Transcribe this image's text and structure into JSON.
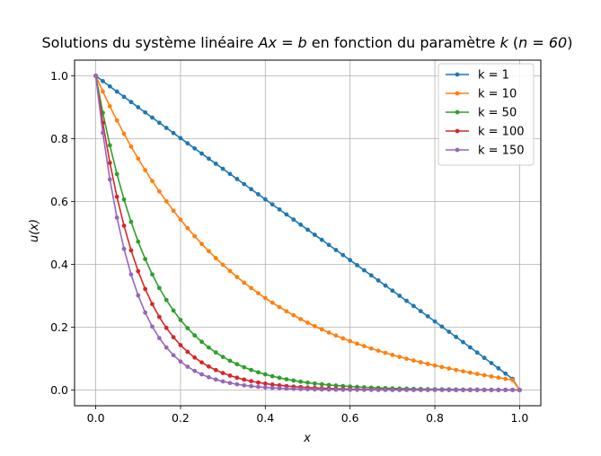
{
  "chart_data": {
    "type": "line",
    "title": "Solutions du système linéaire Ax = b en fonction du paramètre k (n = 60)",
    "title_parts": {
      "prefix": "Solutions du système linéaire ",
      "equation": "Ax = b",
      "middle": " en fonction du paramètre ",
      "param": "k",
      "suffix_open": " (",
      "n_expr": "n = 60",
      "suffix_close": ")"
    },
    "xlabel": "x",
    "ylabel": "u(x)",
    "xlim": [
      -0.05,
      1.05
    ],
    "ylim": [
      -0.05,
      1.05
    ],
    "xticks": [
      0.0,
      0.2,
      0.4,
      0.6,
      0.8,
      1.0
    ],
    "yticks": [
      0.0,
      0.2,
      0.4,
      0.6,
      0.8,
      1.0
    ],
    "xtick_labels": [
      "0.0",
      "0.2",
      "0.4",
      "0.6",
      "0.8",
      "1.0"
    ],
    "ytick_labels": [
      "0.0",
      "0.2",
      "0.4",
      "0.6",
      "0.8",
      "1.0"
    ],
    "grid": true,
    "legend_position": "top-right",
    "n_points": 61,
    "x_start": 0.0,
    "x_end": 1.0,
    "series": [
      {
        "name": "k = 1",
        "color": "#1f77b4",
        "values": [
          1.0,
          0.9832,
          0.9665,
          0.9498,
          0.9332,
          0.9166,
          0.9001,
          0.8836,
          0.8671,
          0.8507,
          0.8343,
          0.8179,
          0.8016,
          0.7852,
          0.769,
          0.7527,
          0.7364,
          0.7202,
          0.704,
          0.6878,
          0.6716,
          0.6554,
          0.6393,
          0.6231,
          0.607,
          0.5908,
          0.5747,
          0.5586,
          0.5425,
          0.5263,
          0.5102,
          0.4941,
          0.478,
          0.4619,
          0.4457,
          0.4296,
          0.4134,
          0.3973,
          0.3811,
          0.3649,
          0.3487,
          0.3325,
          0.3163,
          0.3,
          0.2837,
          0.2674,
          0.2511,
          0.2347,
          0.2183,
          0.2019,
          0.1854,
          0.1689,
          0.1524,
          0.1358,
          0.1192,
          0.1025,
          0.0858,
          0.0691,
          0.0523,
          0.0354,
          0.0
        ]
      },
      {
        "name": "k = 10",
        "color": "#ff7f0e",
        "values": [
          1.0,
          0.9503,
          0.9031,
          0.8582,
          0.8156,
          0.775,
          0.7365,
          0.6999,
          0.6651,
          0.632,
          0.6005,
          0.5706,
          0.5422,
          0.5152,
          0.4895,
          0.4651,
          0.4419,
          0.4198,
          0.3988,
          0.3789,
          0.3599,
          0.3418,
          0.3247,
          0.3083,
          0.2928,
          0.2781,
          0.264,
          0.2507,
          0.2379,
          0.2258,
          0.2143,
          0.2033,
          0.1929,
          0.1829,
          0.1734,
          0.1644,
          0.1557,
          0.1475,
          0.1397,
          0.1322,
          0.1251,
          0.1183,
          0.1117,
          0.1055,
          0.0996,
          0.0938,
          0.0884,
          0.0831,
          0.0781,
          0.0732,
          0.0685,
          0.064,
          0.0596,
          0.0553,
          0.0512,
          0.0472,
          0.0432,
          0.0394,
          0.0356,
          0.0318,
          0.0
        ]
      },
      {
        "name": "k = 50",
        "color": "#2ca02c",
        "values": [
          1.0,
          0.8825,
          0.7788,
          0.6873,
          0.6065,
          0.5353,
          0.4724,
          0.4169,
          0.3679,
          0.3247,
          0.2865,
          0.2529,
          0.2231,
          0.1969,
          0.1738,
          0.1534,
          0.1353,
          0.1194,
          0.1054,
          0.093,
          0.0821,
          0.0724,
          0.0639,
          0.0564,
          0.0498,
          0.0439,
          0.0388,
          0.0342,
          0.0302,
          0.0266,
          0.0235,
          0.0207,
          0.0183,
          0.0161,
          0.0142,
          0.0126,
          0.0111,
          0.0098,
          0.0086,
          0.0076,
          0.0067,
          0.0059,
          0.0052,
          0.0046,
          0.0041,
          0.0036,
          0.0032,
          0.0028,
          0.0025,
          0.0022,
          0.0019,
          0.0017,
          0.0015,
          0.0013,
          0.0012,
          0.001,
          0.0009,
          0.0008,
          0.0007,
          0.0006,
          0.0
        ]
      },
      {
        "name": "k = 100",
        "color": "#d62728",
        "values": [
          1.0,
          0.8504,
          0.7231,
          0.6149,
          0.5229,
          0.4446,
          0.3781,
          0.3215,
          0.2734,
          0.2325,
          0.1977,
          0.1681,
          0.1429,
          0.1216,
          0.1034,
          0.0879,
          0.0747,
          0.0636,
          0.054,
          0.046,
          0.0391,
          0.0332,
          0.0283,
          0.024,
          0.0204,
          0.0174,
          0.0148,
          0.0126,
          0.0107,
          0.0091,
          0.0077,
          0.0066,
          0.0056,
          0.0048,
          0.0041,
          0.0035,
          0.0029,
          0.0025,
          0.0021,
          0.0018,
          0.0015,
          0.0013,
          0.0011,
          0.0009,
          0.0008,
          0.0007,
          0.0006,
          0.0005,
          0.0004,
          0.0004,
          0.0003,
          0.0003,
          0.0002,
          0.0002,
          0.0002,
          0.0001,
          0.0001,
          0.0001,
          0.0001,
          0.0001,
          0.0
        ]
      },
      {
        "name": "k = 150",
        "color": "#9467bd",
        "values": [
          1.0,
          0.8187,
          0.6703,
          0.5488,
          0.4493,
          0.3679,
          0.3012,
          0.2466,
          0.2019,
          0.1653,
          0.1353,
          0.1108,
          0.0907,
          0.0743,
          0.0608,
          0.0498,
          0.0408,
          0.0334,
          0.0273,
          0.0224,
          0.0183,
          0.015,
          0.0123,
          0.0101,
          0.0082,
          0.0067,
          0.0055,
          0.0045,
          0.0037,
          0.003,
          0.0025,
          0.002,
          0.0017,
          0.0014,
          0.0011,
          0.0009,
          0.0007,
          0.0006,
          0.0005,
          0.0004,
          0.0003,
          0.0003,
          0.0002,
          0.0002,
          0.0002,
          0.0001,
          0.0001,
          0.0001,
          0.0001,
          0.0001,
          0.0001,
          0.0,
          0.0,
          0.0,
          0.0,
          0.0,
          0.0,
          0.0,
          0.0,
          0.0,
          0.0
        ]
      }
    ]
  }
}
